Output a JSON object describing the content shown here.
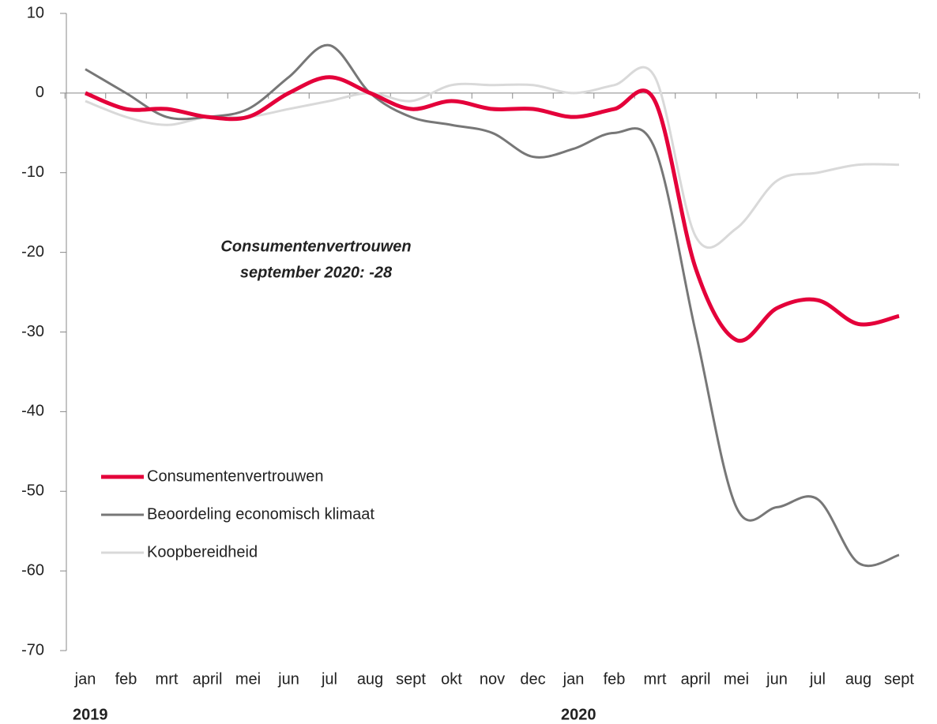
{
  "chart_data": {
    "type": "line",
    "categories": [
      "jan",
      "feb",
      "mrt",
      "april",
      "mei",
      "jun",
      "jul",
      "aug",
      "sept",
      "okt",
      "nov",
      "dec",
      "jan",
      "feb",
      "mrt",
      "april",
      "mei",
      "jun",
      "jul",
      "aug",
      "sept"
    ],
    "year_labels": [
      "2019",
      "2020"
    ],
    "series": [
      {
        "name": "Consumentenvertrouwen",
        "color": "#e4003a",
        "width": 5,
        "values": [
          0,
          -2,
          -2,
          -3,
          -3,
          0,
          2,
          0,
          -2,
          -1,
          -2,
          -2,
          -3,
          -2,
          -1,
          -22,
          -31,
          -27,
          -26,
          -29,
          -28
        ]
      },
      {
        "name": "Beoordeling economisch klimaat",
        "color": "#777777",
        "width": 3,
        "values": [
          3,
          0,
          -3,
          -3,
          -2,
          2,
          6,
          0,
          -3,
          -4,
          -5,
          -8,
          -7,
          -5,
          -7,
          -30,
          -52,
          -52,
          -51,
          -59,
          -58
        ]
      },
      {
        "name": "Koopbereidheid",
        "color": "#d9d9d9",
        "width": 3,
        "values": [
          -1,
          -3,
          -4,
          -3,
          -3,
          -2,
          -1,
          0,
          -1,
          1,
          1,
          1,
          0,
          1,
          2,
          -18,
          -17,
          -11,
          -10,
          -9,
          -9
        ]
      }
    ],
    "annotation": [
      "Consumentenvertrouwen",
      "september 2020: -28"
    ],
    "ylim": [
      -70,
      10
    ],
    "yticks": [
      10,
      0,
      -10,
      -20,
      -30,
      -40,
      -50,
      -60,
      -70
    ],
    "legend": "lower left"
  }
}
